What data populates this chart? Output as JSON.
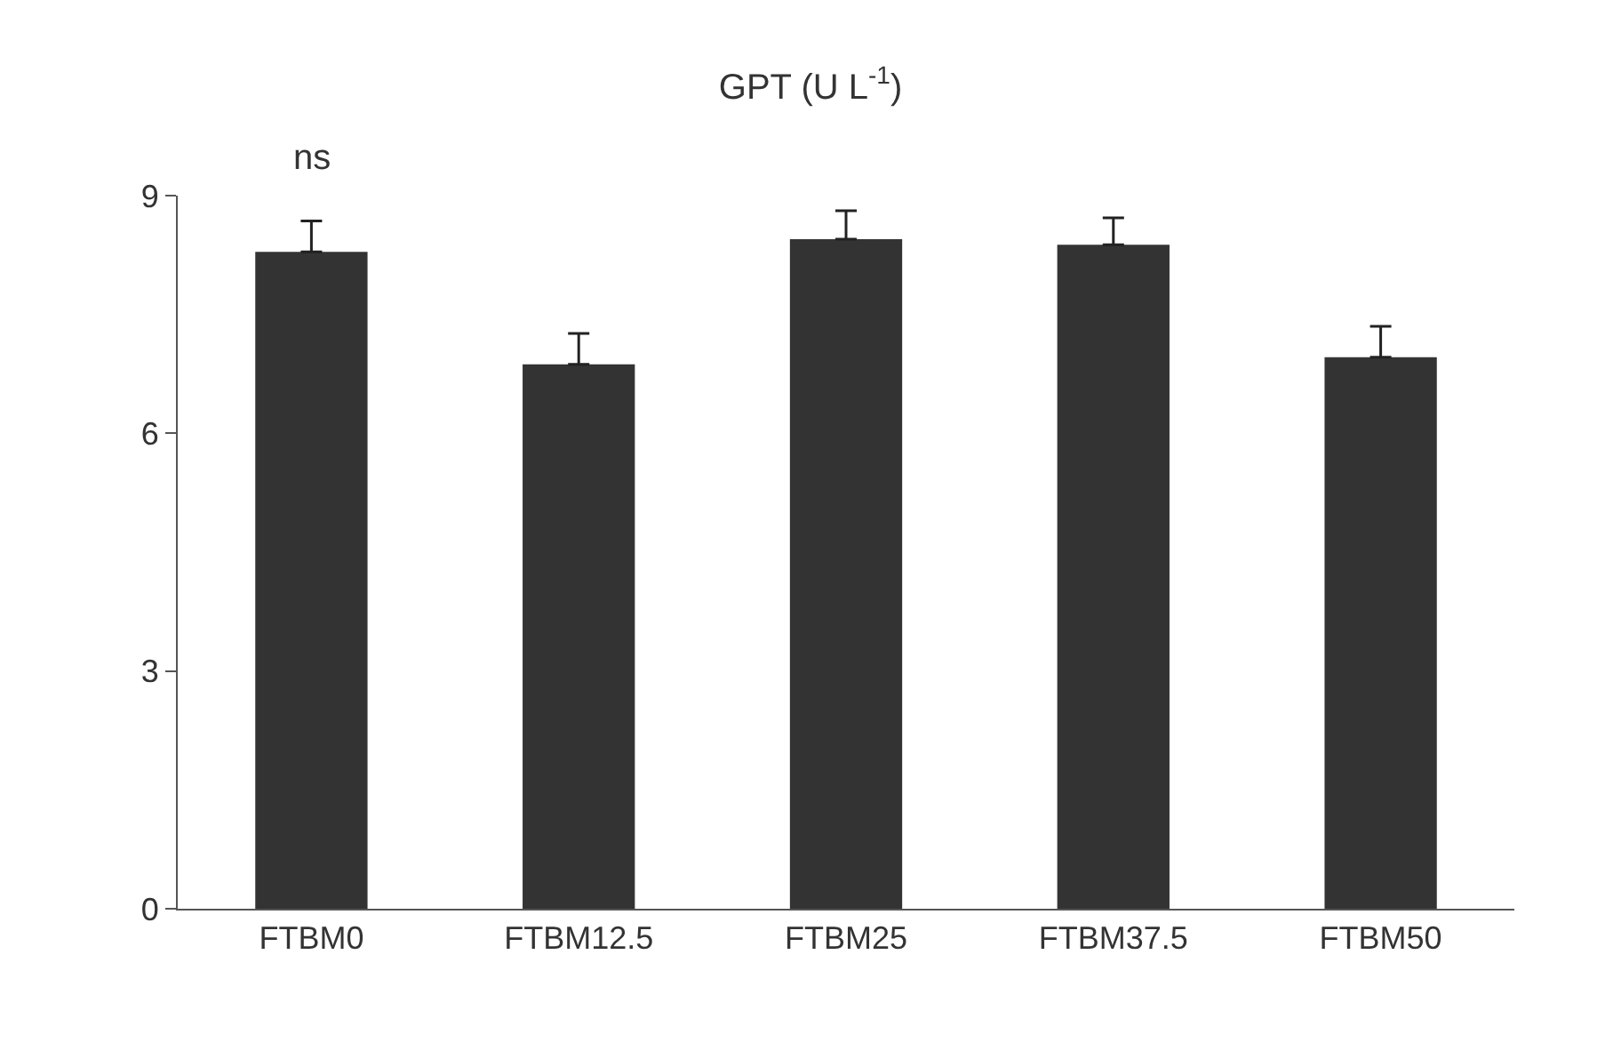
{
  "chart_data": {
    "type": "bar",
    "title": "GPT (U L$^{-1}$)",
    "categories": [
      "FTBM0",
      "FTBM12.5",
      "FTBM25",
      "FTBM37.5",
      "FTBM50"
    ],
    "values": [
      8.29,
      6.87,
      8.45,
      8.38,
      6.96
    ],
    "errors": [
      [
        8.29,
        8.68
      ],
      [
        6.87,
        7.26
      ],
      [
        8.45,
        8.81
      ],
      [
        8.38,
        8.72
      ],
      [
        6.96,
        7.35
      ]
    ],
    "color": "#333333",
    "ylim": [
      0,
      9
    ],
    "yticks": [
      0,
      3,
      6,
      9
    ],
    "annotations": [
      "ns"
    ]
  }
}
